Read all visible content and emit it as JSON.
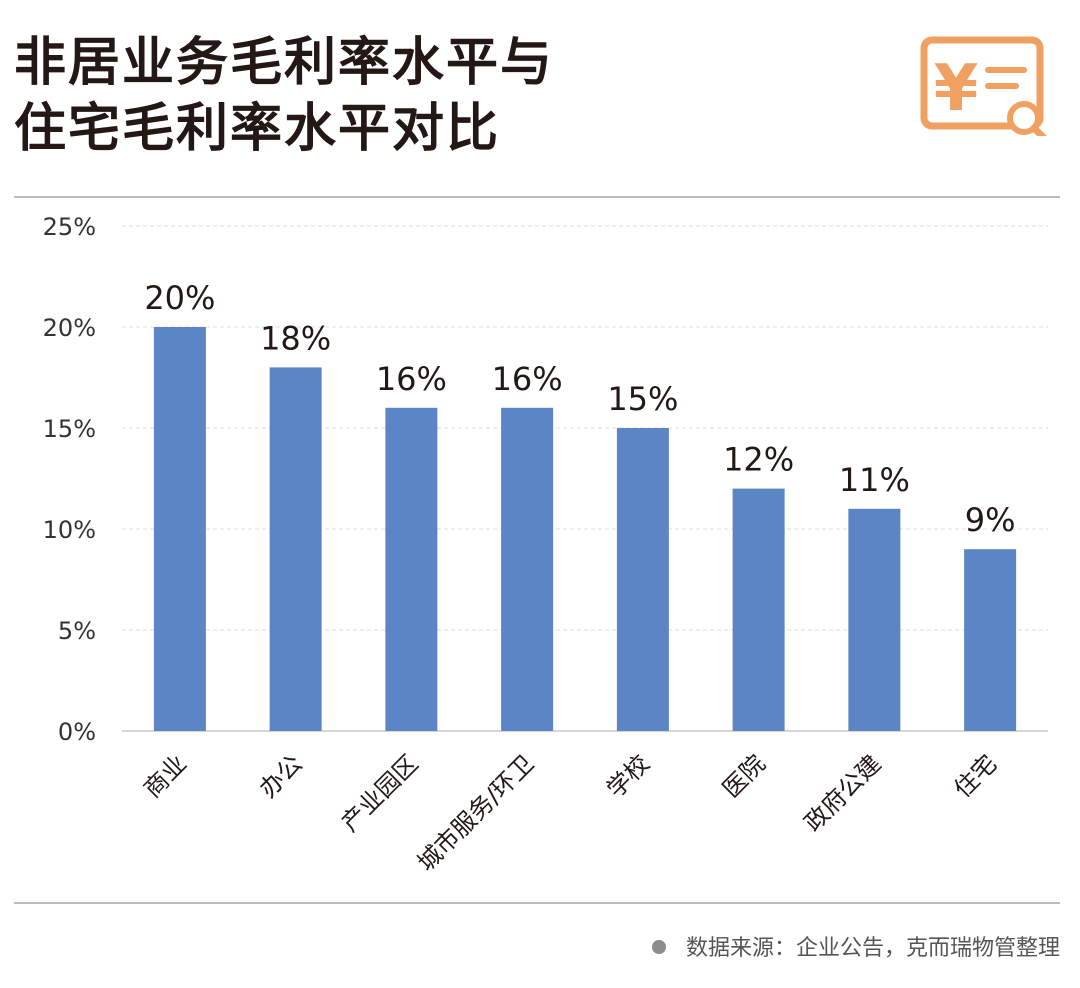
{
  "header": {
    "title_line1": "非居业务毛利率水平与",
    "title_line2": "住宅毛利率水平对比",
    "logo_icon": "yuan-document-search-icon",
    "logo_color": "#f0a060"
  },
  "chart_data": {
    "type": "bar",
    "categories": [
      "商业",
      "办公",
      "产业园区",
      "城市服务/环卫",
      "学校",
      "医院",
      "政府公建",
      "住宅"
    ],
    "values": [
      20,
      18,
      16,
      16,
      15,
      12,
      11,
      9
    ],
    "data_labels": [
      "20%",
      "18%",
      "16%",
      "16%",
      "15%",
      "12%",
      "11%",
      "9%"
    ],
    "ylim": [
      0,
      25
    ],
    "yticks": [
      0,
      5,
      10,
      15,
      20,
      25
    ],
    "ytick_labels": [
      "0%",
      "5%",
      "10%",
      "15%",
      "20%",
      "25%"
    ],
    "bar_color": "#5b85c4",
    "grid": true,
    "legend": "none"
  },
  "footer": {
    "source": "数据来源：企业公告，克而瑞物管整理"
  }
}
